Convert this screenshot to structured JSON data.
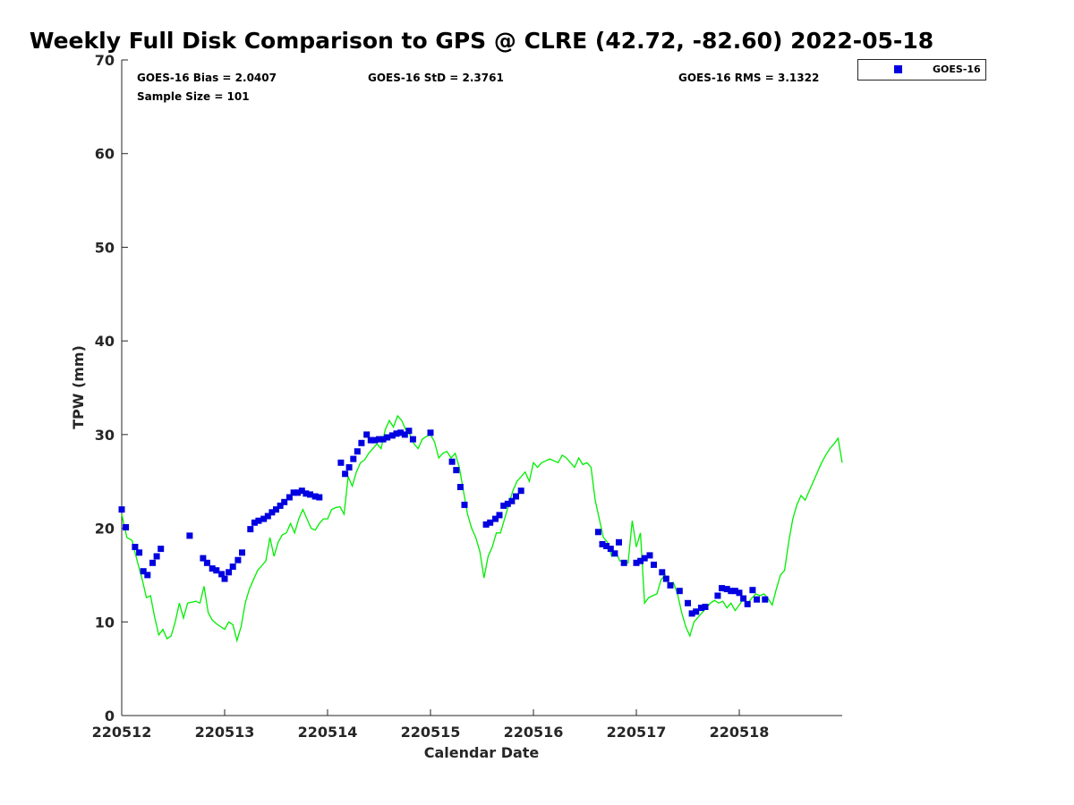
{
  "chart_data": {
    "type": "scatter",
    "title": "Weekly Full Disk Comparison to GPS @ CLRE (42.72, -82.60) 2022-05-18",
    "xlabel": "Calendar Date",
    "ylabel": "TPW (mm)",
    "xlim": [
      "220512",
      "220519"
    ],
    "ylim": [
      0,
      70
    ],
    "x_tick_labels": [
      "220512",
      "220513",
      "220514",
      "220515",
      "220516",
      "220517",
      "220518"
    ],
    "y_tick_labels": [
      "0",
      "10",
      "20",
      "30",
      "40",
      "50",
      "60",
      "70"
    ],
    "grid": false,
    "legend_position": "outside top-right",
    "stats": {
      "bias": "GOES-16 Bias = 2.0407",
      "std": "GOES-16 StD = 2.3761",
      "rms": "GOES-16 RMS = 3.1322",
      "sample_size": "Sample Size = 101"
    },
    "series": [
      {
        "name": "GOES-16",
        "type": "scatter",
        "color": "#0000e0",
        "marker": "square",
        "x_unit": "days after 220512",
        "x": [
          0.0,
          0.04,
          0.13,
          0.17,
          0.21,
          0.25,
          0.3,
          0.34,
          0.38,
          0.66,
          0.79,
          0.83,
          0.88,
          0.92,
          0.97,
          1.0,
          1.04,
          1.08,
          1.13,
          1.17,
          1.25,
          1.29,
          1.33,
          1.38,
          1.42,
          1.46,
          1.5,
          1.54,
          1.58,
          1.63,
          1.67,
          1.71,
          1.75,
          1.79,
          1.83,
          1.88,
          1.92,
          2.13,
          2.17,
          2.21,
          2.25,
          2.29,
          2.33,
          2.38,
          2.42,
          2.46,
          2.5,
          2.54,
          2.58,
          2.63,
          2.67,
          2.71,
          2.75,
          2.79,
          2.83,
          3.0,
          3.21,
          3.25,
          3.29,
          3.33,
          3.54,
          3.58,
          3.63,
          3.67,
          3.71,
          3.75,
          3.79,
          3.83,
          3.88,
          4.63,
          4.67,
          4.71,
          4.75,
          4.79,
          4.83,
          4.88,
          5.0,
          5.04,
          5.08,
          5.13,
          5.17,
          5.25,
          5.29,
          5.33,
          5.42,
          5.5,
          5.54,
          5.58,
          5.63,
          5.67,
          5.79,
          5.83,
          5.88,
          5.92,
          5.96,
          6.0,
          6.04,
          6.08,
          6.13,
          6.17,
          6.25
        ],
        "y": [
          22.0,
          20.1,
          18.0,
          17.4,
          15.4,
          15.0,
          16.3,
          17.0,
          17.8,
          19.2,
          16.8,
          16.3,
          15.7,
          15.5,
          15.1,
          14.6,
          15.3,
          15.9,
          16.6,
          17.4,
          19.9,
          20.6,
          20.8,
          21.0,
          21.3,
          21.7,
          22.0,
          22.4,
          22.8,
          23.3,
          23.8,
          23.8,
          24.0,
          23.7,
          23.6,
          23.4,
          23.3,
          27.0,
          25.8,
          26.5,
          27.4,
          28.2,
          29.1,
          30.0,
          29.4,
          29.4,
          29.5,
          29.5,
          29.7,
          29.9,
          30.1,
          30.2,
          30.0,
          30.4,
          29.5,
          30.2,
          27.1,
          26.2,
          24.4,
          22.5,
          20.4,
          20.6,
          21.0,
          21.4,
          22.4,
          22.6,
          22.9,
          23.4,
          24.0,
          19.6,
          18.3,
          18.1,
          17.8,
          17.3,
          18.5,
          16.3,
          16.3,
          16.5,
          16.8,
          17.1,
          16.1,
          15.3,
          14.6,
          13.9,
          13.3,
          12.0,
          10.9,
          11.1,
          11.5,
          11.6,
          12.8,
          13.6,
          13.5,
          13.3,
          13.3,
          13.1,
          12.5,
          11.9,
          13.4,
          12.4,
          12.4
        ]
      },
      {
        "name": "",
        "type": "line",
        "color": "#00ee00",
        "x_unit": "days after 220512",
        "x": [
          0.0,
          0.05,
          0.1,
          0.15,
          0.2,
          0.24,
          0.28,
          0.32,
          0.36,
          0.4,
          0.44,
          0.48,
          0.52,
          0.56,
          0.6,
          0.64,
          0.68,
          0.72,
          0.76,
          0.8,
          0.84,
          0.88,
          0.92,
          0.96,
          1.0,
          1.04,
          1.08,
          1.12,
          1.16,
          1.2,
          1.24,
          1.28,
          1.32,
          1.36,
          1.4,
          1.44,
          1.48,
          1.52,
          1.56,
          1.6,
          1.64,
          1.68,
          1.72,
          1.76,
          1.8,
          1.84,
          1.88,
          1.92,
          1.96,
          2.0,
          2.04,
          2.08,
          2.12,
          2.16,
          2.2,
          2.24,
          2.28,
          2.32,
          2.36,
          2.4,
          2.44,
          2.48,
          2.52,
          2.56,
          2.6,
          2.64,
          2.68,
          2.72,
          2.76,
          2.8,
          2.84,
          2.88,
          2.92,
          2.96,
          3.0,
          3.04,
          3.08,
          3.12,
          3.16,
          3.2,
          3.24,
          3.28,
          3.32,
          3.36,
          3.4,
          3.44,
          3.48,
          3.52,
          3.56,
          3.6,
          3.64,
          3.68,
          3.72,
          3.76,
          3.8,
          3.84,
          3.88,
          3.92,
          3.96,
          4.0,
          4.04,
          4.08,
          4.12,
          4.16,
          4.2,
          4.24,
          4.28,
          4.32,
          4.36,
          4.4,
          4.44,
          4.48,
          4.52,
          4.56,
          4.6,
          4.64,
          4.68,
          4.72,
          4.76,
          4.8,
          4.84,
          4.88,
          4.92,
          4.96,
          5.0,
          5.04,
          5.08,
          5.12,
          5.16,
          5.2,
          5.24,
          5.28,
          5.32,
          5.36,
          5.4,
          5.44,
          5.48,
          5.52,
          5.56,
          5.6,
          5.64,
          5.68,
          5.72,
          5.76,
          5.8,
          5.84,
          5.88,
          5.92,
          5.96,
          6.0,
          6.04,
          6.08,
          6.12,
          6.16,
          6.2,
          6.24,
          6.28,
          6.32,
          6.36,
          6.4,
          6.44,
          6.48,
          6.52,
          6.56,
          6.6,
          6.64,
          6.68,
          6.72,
          6.76,
          6.8,
          6.84,
          6.88,
          6.92,
          6.96,
          7.0
        ],
        "y": [
          21.5,
          19.0,
          18.7,
          16.5,
          14.5,
          12.6,
          12.8,
          10.5,
          8.6,
          9.2,
          8.2,
          8.5,
          10.0,
          12.0,
          10.4,
          12.0,
          12.1,
          12.2,
          12.0,
          13.8,
          11.0,
          10.2,
          9.8,
          9.5,
          9.2,
          10.0,
          9.7,
          8.0,
          9.5,
          12.0,
          13.5,
          14.5,
          15.5,
          16.0,
          16.5,
          19.0,
          17.0,
          18.5,
          19.3,
          19.5,
          20.5,
          19.5,
          21.0,
          22.0,
          21.0,
          20.0,
          19.8,
          20.5,
          21.0,
          21.0,
          22.0,
          22.2,
          22.3,
          21.5,
          25.5,
          24.5,
          26.0,
          27.0,
          27.3,
          28.0,
          28.5,
          29.0,
          28.5,
          30.5,
          31.5,
          30.8,
          32.0,
          31.5,
          30.5,
          30.0,
          29.0,
          28.5,
          29.5,
          29.8,
          30.0,
          29.2,
          27.5,
          28.0,
          28.2,
          27.5,
          28.0,
          26.5,
          24.0,
          21.5,
          20.0,
          19.0,
          17.5,
          14.7,
          17.0,
          18.0,
          19.5,
          19.5,
          21.0,
          22.5,
          24.0,
          25.0,
          25.5,
          26.0,
          25.0,
          27.0,
          26.5,
          27.0,
          27.2,
          27.4,
          27.2,
          27.0,
          27.8,
          27.5,
          27.0,
          26.5,
          27.5,
          26.8,
          27.0,
          26.5,
          23.0,
          21.0,
          19.0,
          18.5,
          17.0,
          17.5,
          16.5,
          16.5,
          16.3,
          20.8,
          18.0,
          19.5,
          12.0,
          12.6,
          12.8,
          13.0,
          14.5,
          15.0,
          13.8,
          14.2,
          13.0,
          11.0,
          9.5,
          8.5,
          10.0,
          10.5,
          11.0,
          11.5,
          12.0,
          12.3,
          12.0,
          12.2,
          11.5,
          12.0,
          11.2,
          11.8,
          12.5,
          12.0,
          12.5,
          13.0,
          12.8,
          13.0,
          12.5,
          11.8,
          13.5,
          15.0,
          15.5,
          18.5,
          21.0,
          22.5,
          23.5,
          23.0,
          24.0,
          25.0,
          26.0,
          27.0,
          27.8,
          28.5,
          29.0,
          29.6,
          27.0
        ]
      }
    ]
  }
}
